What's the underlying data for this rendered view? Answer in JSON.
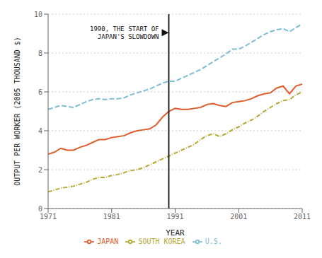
{
  "chart_data": {
    "type": "line",
    "title": "",
    "xlabel": "YEAR",
    "ylabel": "OUTPUT PER WORKER (2005 THOUSAND $)",
    "x": [
      1971,
      1972,
      1973,
      1974,
      1975,
      1976,
      1977,
      1978,
      1979,
      1980,
      1981,
      1982,
      1983,
      1984,
      1985,
      1986,
      1987,
      1988,
      1989,
      1990,
      1991,
      1992,
      1993,
      1994,
      1995,
      1996,
      1997,
      1998,
      1999,
      2000,
      2001,
      2002,
      2003,
      2004,
      2005,
      2006,
      2007,
      2008,
      2009,
      2010,
      2011
    ],
    "series": [
      {
        "name": "JAPAN",
        "color": "#e05c2a",
        "line_style": "solid",
        "values": [
          2.8,
          2.9,
          3.1,
          3.0,
          3.0,
          3.15,
          3.25,
          3.4,
          3.55,
          3.55,
          3.65,
          3.7,
          3.75,
          3.9,
          4.0,
          4.05,
          4.1,
          4.3,
          4.7,
          5.0,
          5.15,
          5.1,
          5.1,
          5.15,
          5.2,
          5.35,
          5.4,
          5.3,
          5.25,
          5.45,
          5.5,
          5.55,
          5.65,
          5.8,
          5.9,
          5.95,
          6.2,
          6.3,
          5.9,
          6.3,
          6.4
        ]
      },
      {
        "name": "U.S.",
        "color": "#7dbdd6",
        "line_style": "dashed",
        "values": [
          5.1,
          5.2,
          5.3,
          5.25,
          5.2,
          5.35,
          5.5,
          5.6,
          5.65,
          5.6,
          5.65,
          5.65,
          5.7,
          5.85,
          5.95,
          6.05,
          6.15,
          6.3,
          6.45,
          6.55,
          6.55,
          6.7,
          6.85,
          7.0,
          7.15,
          7.35,
          7.55,
          7.75,
          7.95,
          8.2,
          8.2,
          8.35,
          8.55,
          8.75,
          8.95,
          9.1,
          9.2,
          9.25,
          9.1,
          9.3,
          9.5
        ]
      },
      {
        "name": "SOUTH KOREA",
        "color": "#b5a832",
        "line_style": "dashdot",
        "values": [
          0.85,
          0.95,
          1.05,
          1.1,
          1.15,
          1.25,
          1.35,
          1.5,
          1.6,
          1.6,
          1.7,
          1.75,
          1.85,
          1.95,
          2.0,
          2.1,
          2.25,
          2.4,
          2.55,
          2.7,
          2.85,
          3.0,
          3.15,
          3.3,
          3.55,
          3.75,
          3.85,
          3.7,
          3.85,
          4.05,
          4.2,
          4.4,
          4.55,
          4.75,
          5.0,
          5.2,
          5.4,
          5.55,
          5.6,
          5.85,
          6.0
        ]
      }
    ],
    "xlim": [
      1971,
      2011
    ],
    "xticks": [
      1971,
      1981,
      1991,
      2001,
      2011
    ],
    "ylim": [
      0,
      10
    ],
    "yticks": [
      0,
      2,
      4,
      6,
      8,
      10
    ],
    "grid": true,
    "legend": "bottom",
    "vlines": [
      1990
    ],
    "annotations": [
      {
        "text": "1990, THE START OF\nJAPAN'S SLOWDOWN",
        "x": 1990,
        "y": 9.05
      }
    ]
  }
}
